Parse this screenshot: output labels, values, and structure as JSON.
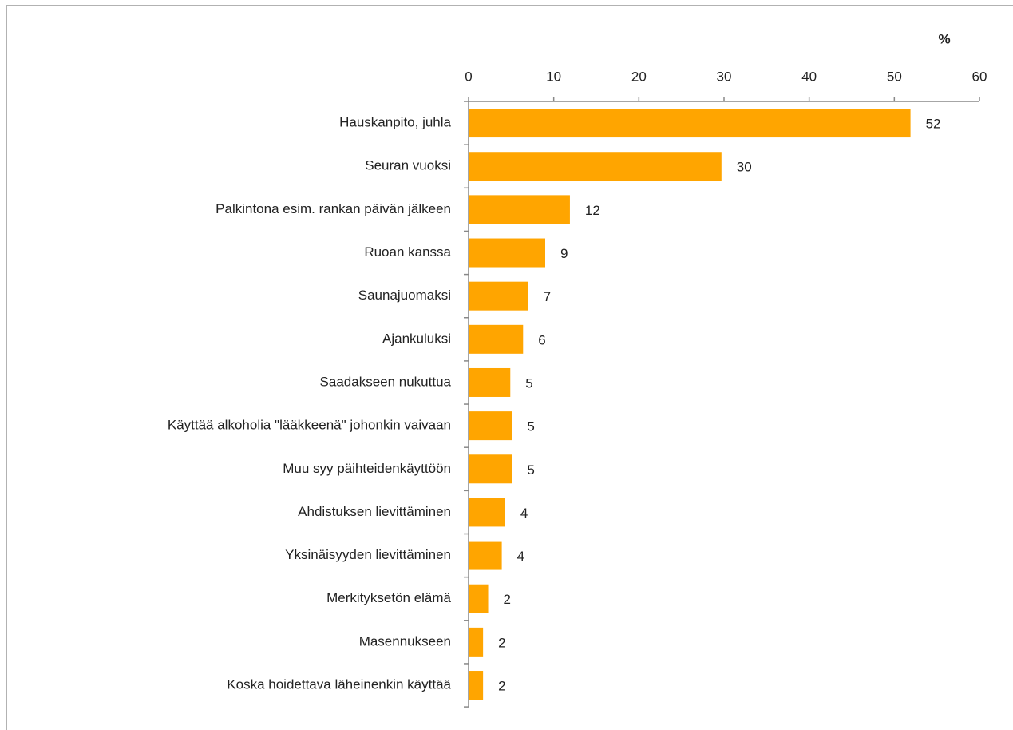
{
  "chart_data": {
    "type": "hbar",
    "xlabel": "%",
    "categories": [
      "Hauskanpito, juhla",
      "Seuran vuoksi",
      "Palkintona esim. rankan päivän jälkeen",
      "Ruoan kanssa",
      "Saunajuomaksi",
      "Ajankuluksi",
      "Saadakseen nukuttua",
      "Käyttää alkoholia \"lääkkeenä\" johonkin vaivaan",
      "Muu syy päihteidenkäyttöön",
      "Ahdistuksen lievittäminen",
      "Yksinäisyyden lievittäminen",
      "Merkityksetön elämä",
      "Masennukseen",
      "Koska hoidettava läheinenkin käyttää"
    ],
    "values": [
      51.9,
      29.7,
      11.9,
      9.0,
      7.0,
      6.4,
      4.9,
      5.1,
      5.1,
      4.3,
      3.9,
      2.3,
      1.7,
      1.7
    ],
    "value_labels": [
      "52",
      "30",
      "12",
      "9",
      "7",
      "6",
      "5",
      "5",
      "5",
      "4",
      "4",
      "2",
      "2",
      "2"
    ],
    "color": "#ffa500",
    "xlim": [
      0,
      60
    ],
    "xticks": [
      0,
      10,
      20,
      30,
      40,
      50,
      60
    ]
  }
}
